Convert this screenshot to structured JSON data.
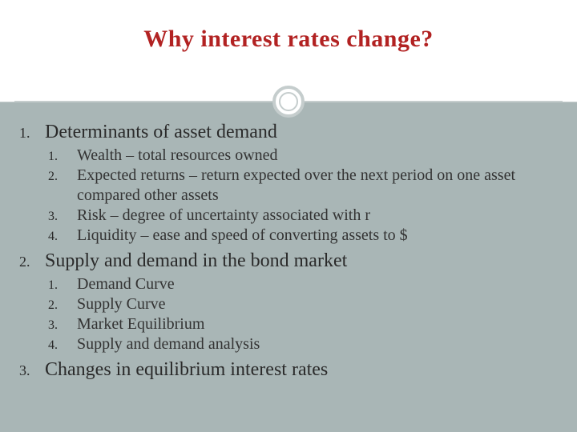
{
  "title": "Why interest rates change?",
  "title_color": "#b22222",
  "background_color": "#a9b6b6",
  "header_bg": "#ffffff",
  "ring_color": "#c5cdcd",
  "outline": {
    "items": [
      {
        "num": "1.",
        "text": "Determinants of asset demand",
        "sub": [
          {
            "num": "1.",
            "text": "Wealth – total resources owned"
          },
          {
            "num": "2.",
            "text": "Expected returns – return expected over the next period on one asset compared  other assets"
          },
          {
            "num": "3.",
            "text": "Risk – degree of uncertainty associated with r"
          },
          {
            "num": "4.",
            "text": "Liquidity – ease and speed of converting assets to $"
          }
        ]
      },
      {
        "num": "2.",
        "text": "Supply and demand in the bond market",
        "sub": [
          {
            "num": "1.",
            "text": "Demand Curve"
          },
          {
            "num": "2.",
            "text": "Supply Curve"
          },
          {
            "num": "3.",
            "text": "Market Equilibrium"
          },
          {
            "num": "4.",
            "text": "Supply and demand analysis"
          }
        ]
      },
      {
        "num": "3.",
        "text": "Changes in equilibrium interest rates",
        "sub": []
      }
    ]
  }
}
